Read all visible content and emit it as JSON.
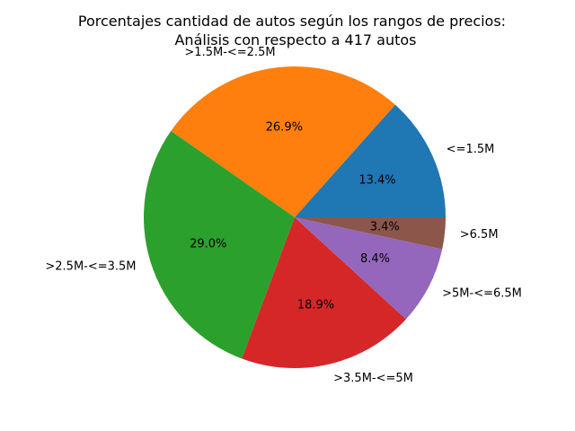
{
  "chart_data": {
    "type": "pie",
    "title_lines": [
      "Porcentajes cantidad de autos según los rangos de precios:",
      "Análisis con respecto a 417 autos"
    ],
    "categories": [
      "<=1.5M",
      ">1.5M-<=2.5M",
      ">2.5M-<=3.5M",
      ">3.5M-<=5M",
      ">5M-<=6.5M",
      ">6.5M"
    ],
    "values": [
      13.4,
      26.9,
      29.0,
      18.9,
      8.4,
      3.4
    ],
    "percent_labels": [
      "13.4%",
      "26.9%",
      "29.0%",
      "18.9%",
      "8.4%",
      "3.4%"
    ],
    "colors": [
      "#1f77b4",
      "#ff7f0e",
      "#2ca02c",
      "#d62728",
      "#9467bd",
      "#8c564b"
    ]
  }
}
